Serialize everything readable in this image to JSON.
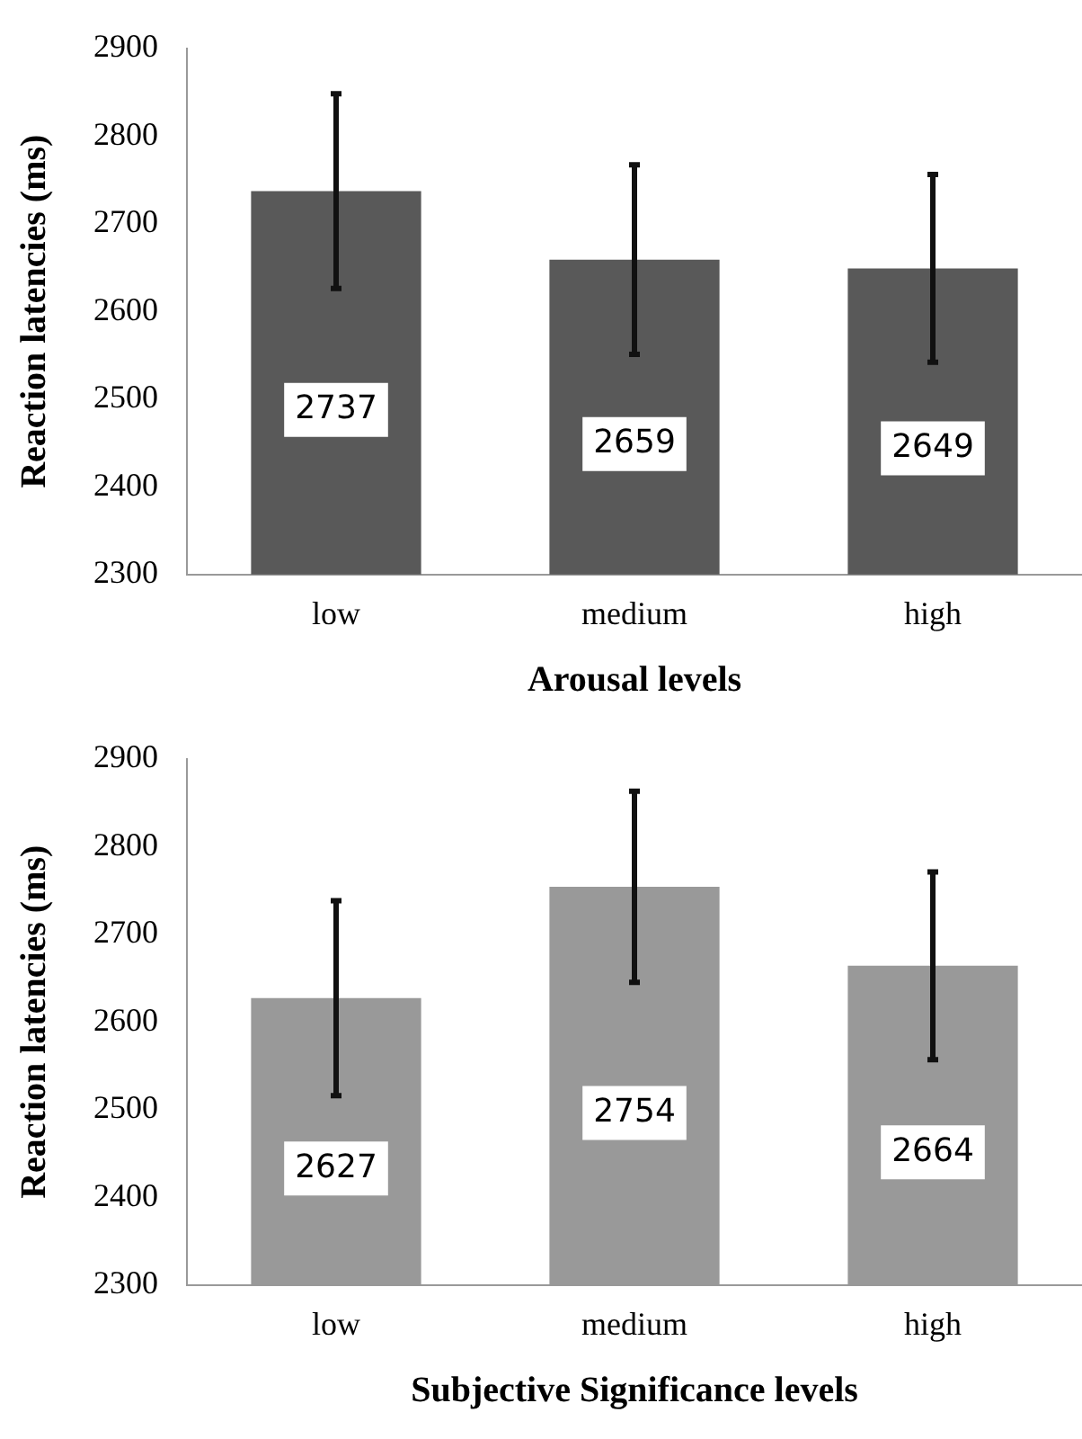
{
  "chart_data": [
    {
      "type": "bar",
      "xlabel": "Arousal levels",
      "ylabel": "Reaction latencies (ms)",
      "categories": [
        "low",
        "medium",
        "high"
      ],
      "values": [
        2737,
        2659,
        2649
      ],
      "errors": [
        111,
        108,
        107
      ],
      "color": "#595959",
      "ylim": [
        2300,
        2900
      ],
      "yticks": [
        2300,
        2400,
        2500,
        2600,
        2700,
        2800,
        2900
      ],
      "grid": false,
      "legend": false,
      "data_labels": true
    },
    {
      "type": "bar",
      "xlabel": "Subjective Significance levels",
      "ylabel": "Reaction latencies (ms)",
      "categories": [
        "low",
        "medium",
        "high"
      ],
      "values": [
        2627,
        2754,
        2664
      ],
      "errors": [
        111,
        109,
        107
      ],
      "color": "#999999",
      "ylim": [
        2300,
        2900
      ],
      "yticks": [
        2300,
        2400,
        2500,
        2600,
        2700,
        2800,
        2900
      ],
      "grid": false,
      "legend": false,
      "data_labels": true
    }
  ]
}
